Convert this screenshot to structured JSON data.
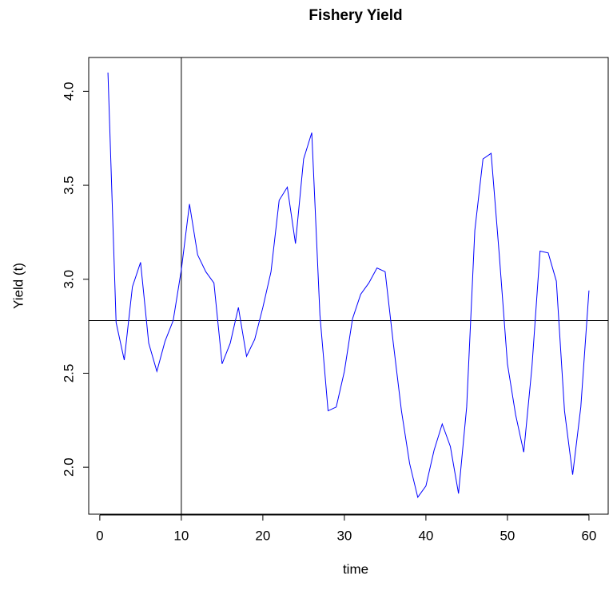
{
  "chart_data": {
    "type": "line",
    "title": "Fishery Yield",
    "x_label": "time",
    "y_label": "Yield (t)",
    "x": [
      1,
      2,
      3,
      4,
      5,
      6,
      7,
      8,
      9,
      10,
      11,
      12,
      13,
      14,
      15,
      16,
      17,
      18,
      19,
      20,
      21,
      22,
      23,
      24,
      25,
      26,
      27,
      28,
      29,
      30,
      31,
      32,
      33,
      34,
      35,
      36,
      37,
      38,
      39,
      40,
      41,
      42,
      43,
      44,
      45,
      46,
      47,
      48,
      49,
      50,
      51,
      52,
      53,
      54,
      55,
      56,
      57,
      58,
      59,
      60
    ],
    "series": [
      {
        "color": "#0000ff",
        "values": [
          4.1,
          2.77,
          2.57,
          2.96,
          3.09,
          2.66,
          2.51,
          2.67,
          2.78,
          3.05,
          3.4,
          3.13,
          3.04,
          2.98,
          2.55,
          2.66,
          2.85,
          2.59,
          2.68,
          2.85,
          3.04,
          3.42,
          3.49,
          3.19,
          3.64,
          3.78,
          2.81,
          2.3,
          2.32,
          2.51,
          2.79,
          2.92,
          2.98,
          3.06,
          3.04,
          2.66,
          2.3,
          2.02,
          1.84,
          1.9,
          2.09,
          2.23,
          2.11,
          1.86,
          2.32,
          3.26,
          3.64,
          3.67,
          3.13,
          2.55,
          2.28,
          2.08,
          2.53,
          3.15,
          3.14,
          2.99,
          2.3,
          1.96,
          2.32,
          2.94
        ]
      }
    ],
    "xlim": [
      -1.36,
      62.36
    ],
    "ylim": [
      1.75,
      4.18
    ],
    "xticks": [
      0,
      10,
      20,
      30,
      40,
      50,
      60
    ],
    "yticks": [
      {
        "value": 2.0,
        "label": "2.0"
      },
      {
        "value": 2.5,
        "label": "2.5"
      },
      {
        "value": 3.0,
        "label": "3.0"
      },
      {
        "value": 3.5,
        "label": "3.5"
      },
      {
        "value": 4.0,
        "label": "4.0"
      }
    ],
    "hline": 2.78,
    "vline": 10
  }
}
